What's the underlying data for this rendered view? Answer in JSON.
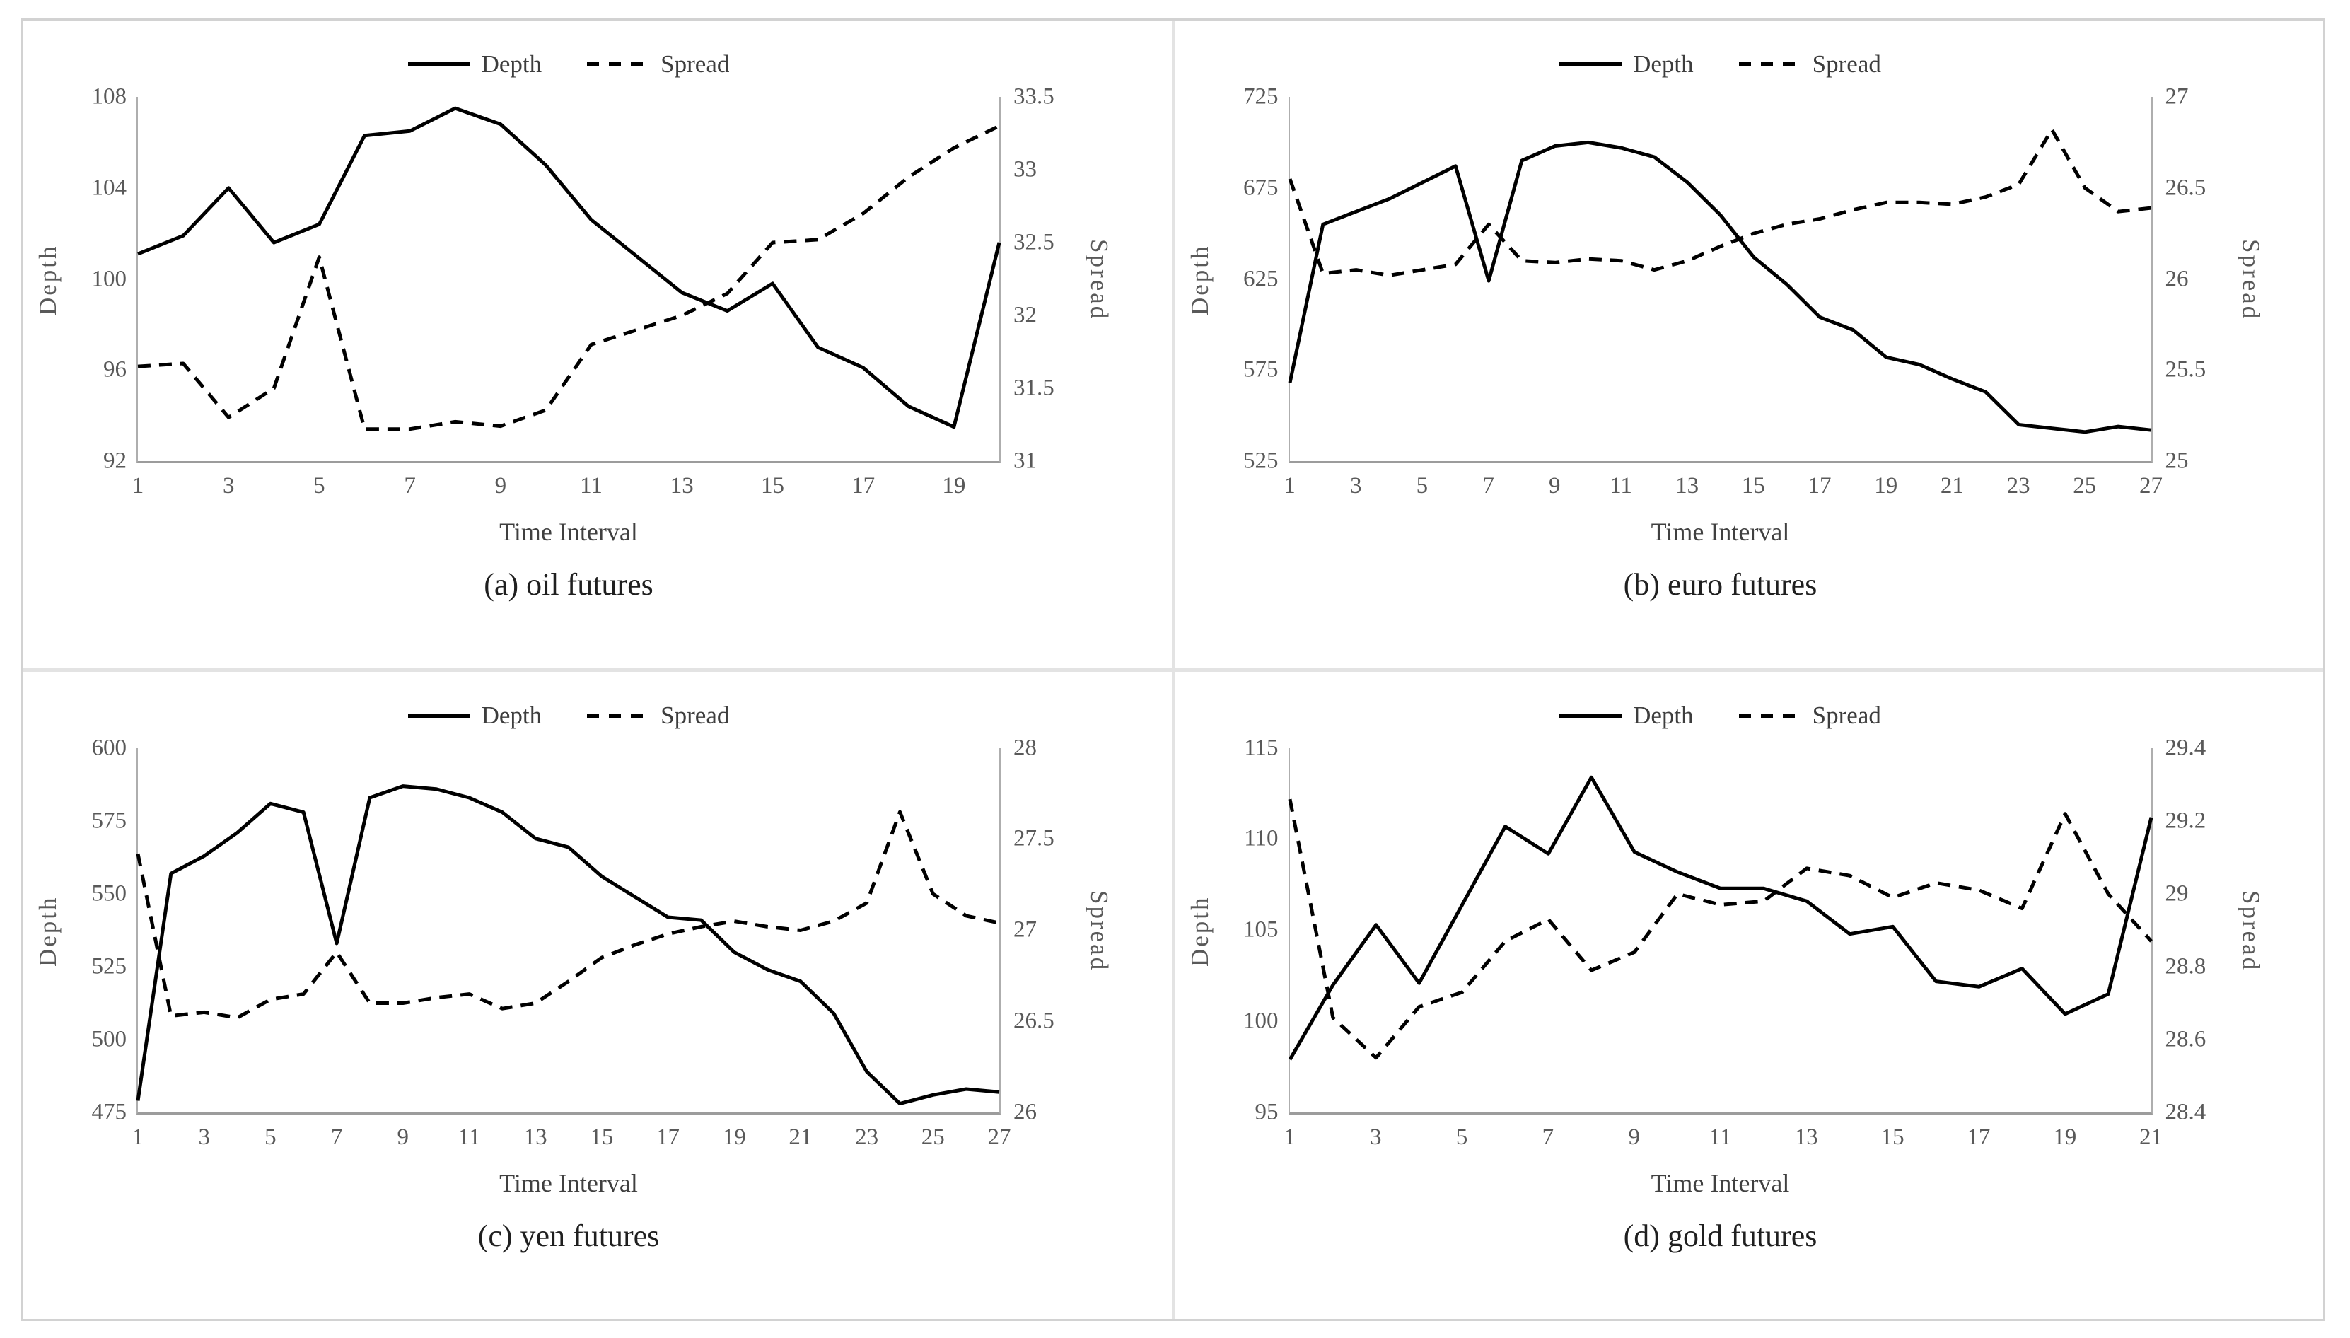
{
  "page": {
    "background": "#ffffff",
    "frame_border_color": "#d2d2d2",
    "divider_color": "#e3e3e3",
    "line_color": "#000000",
    "tick_text_color": "#595959"
  },
  "chart_data": [
    {
      "type": "line",
      "caption": "(a) oil futures",
      "xlabel": "Time Interval",
      "ylabel_left": "Depth",
      "ylabel_right": "Spread",
      "legend_position": "top",
      "grid": false,
      "xlim": [
        1,
        20
      ],
      "xticks": [
        1,
        3,
        5,
        7,
        9,
        11,
        13,
        15,
        17,
        19
      ],
      "ylim_left": [
        92,
        108
      ],
      "yticks_left": [
        92,
        96,
        100,
        104,
        108
      ],
      "ylim_right": [
        31,
        33.5
      ],
      "yticks_right": [
        31,
        31.5,
        32,
        32.5,
        33,
        33.5
      ],
      "x": [
        1,
        2,
        3,
        4,
        5,
        6,
        7,
        8,
        9,
        10,
        11,
        12,
        13,
        14,
        15,
        16,
        17,
        18,
        19,
        20
      ],
      "series": [
        {
          "name": "Depth",
          "axis": "left",
          "style": "solid",
          "values": [
            101.1,
            101.9,
            104.0,
            101.6,
            102.4,
            106.3,
            106.5,
            107.5,
            106.8,
            105.0,
            102.6,
            101.0,
            99.4,
            98.6,
            99.8,
            97.0,
            96.1,
            94.4,
            93.5,
            101.6
          ]
        },
        {
          "name": "Spread",
          "axis": "right",
          "style": "dashed",
          "values": [
            31.65,
            31.67,
            31.3,
            31.5,
            32.4,
            31.22,
            31.22,
            31.27,
            31.24,
            31.35,
            31.8,
            31.9,
            32.0,
            32.15,
            32.5,
            32.52,
            32.7,
            32.95,
            33.15,
            33.3
          ]
        }
      ]
    },
    {
      "type": "line",
      "caption": "(b) euro futures",
      "xlabel": "Time Interval",
      "ylabel_left": "Depth",
      "ylabel_right": "Spread",
      "legend_position": "top",
      "grid": false,
      "xlim": [
        1,
        27
      ],
      "xticks": [
        1,
        3,
        5,
        7,
        9,
        11,
        13,
        15,
        17,
        19,
        21,
        23,
        25,
        27
      ],
      "ylim_left": [
        525,
        725
      ],
      "yticks_left": [
        525,
        575,
        625,
        675,
        725
      ],
      "ylim_right": [
        25,
        27
      ],
      "yticks_right": [
        25,
        25.5,
        26,
        26.5,
        27
      ],
      "x": [
        1,
        2,
        3,
        4,
        5,
        6,
        7,
        8,
        9,
        10,
        11,
        12,
        13,
        14,
        15,
        16,
        17,
        18,
        19,
        20,
        21,
        22,
        23,
        24,
        25,
        26,
        27
      ],
      "series": [
        {
          "name": "Depth",
          "axis": "left",
          "style": "solid",
          "values": [
            568,
            655,
            662,
            669,
            678,
            687,
            624,
            690,
            698,
            700,
            697,
            692,
            678,
            660,
            637,
            622,
            604,
            597,
            582,
            578,
            570,
            563,
            545,
            543,
            541,
            544,
            542
          ]
        },
        {
          "name": "Spread",
          "axis": "right",
          "style": "dashed",
          "values": [
            26.55,
            26.03,
            26.05,
            26.02,
            26.05,
            26.08,
            26.3,
            26.1,
            26.09,
            26.11,
            26.1,
            26.05,
            26.1,
            26.18,
            26.25,
            26.3,
            26.33,
            26.38,
            26.42,
            26.42,
            26.41,
            26.45,
            26.52,
            26.82,
            26.5,
            26.37,
            26.39
          ]
        }
      ]
    },
    {
      "type": "line",
      "caption": "(c) yen futures",
      "xlabel": "Time Interval",
      "ylabel_left": "Depth",
      "ylabel_right": "Spread",
      "legend_position": "top",
      "grid": false,
      "xlim": [
        1,
        27
      ],
      "xticks": [
        1,
        3,
        5,
        7,
        9,
        11,
        13,
        15,
        17,
        19,
        21,
        23,
        25,
        27
      ],
      "ylim_left": [
        475,
        600
      ],
      "yticks_left": [
        475,
        500,
        525,
        550,
        575,
        600
      ],
      "ylim_right": [
        26,
        28
      ],
      "yticks_right": [
        26,
        26.5,
        27,
        27.5,
        28
      ],
      "x": [
        1,
        2,
        3,
        4,
        5,
        6,
        7,
        8,
        9,
        10,
        11,
        12,
        13,
        14,
        15,
        16,
        17,
        18,
        19,
        20,
        21,
        22,
        23,
        24,
        25,
        26,
        27
      ],
      "series": [
        {
          "name": "Depth",
          "axis": "left",
          "style": "solid",
          "values": [
            479,
            557,
            563,
            571,
            581,
            578,
            533,
            583,
            587,
            586,
            583,
            578,
            569,
            566,
            556,
            549,
            542,
            541,
            530,
            524,
            520,
            509,
            489,
            478,
            481,
            483,
            482
          ]
        },
        {
          "name": "Spread",
          "axis": "right",
          "style": "dashed",
          "values": [
            27.42,
            26.53,
            26.55,
            26.52,
            26.62,
            26.65,
            26.88,
            26.6,
            26.6,
            26.63,
            26.65,
            26.57,
            26.6,
            26.72,
            26.85,
            26.92,
            26.98,
            27.02,
            27.05,
            27.02,
            27.0,
            27.05,
            27.15,
            27.65,
            27.2,
            27.08,
            27.04
          ]
        }
      ]
    },
    {
      "type": "line",
      "caption": "(d) gold futures",
      "xlabel": "Time Interval",
      "ylabel_left": "Depth",
      "ylabel_right": "Spread",
      "legend_position": "top",
      "grid": false,
      "xlim": [
        1,
        21
      ],
      "xticks": [
        1,
        3,
        5,
        7,
        9,
        11,
        13,
        15,
        17,
        19,
        21
      ],
      "ylim_left": [
        95,
        115
      ],
      "yticks_left": [
        95,
        100,
        105,
        110,
        115
      ],
      "ylim_right": [
        28.4,
        29.4
      ],
      "yticks_right": [
        28.4,
        28.6,
        28.8,
        29,
        29.2,
        29.4
      ],
      "x": [
        1,
        2,
        3,
        4,
        5,
        6,
        7,
        8,
        9,
        10,
        11,
        12,
        13,
        14,
        15,
        16,
        17,
        18,
        19,
        20,
        21
      ],
      "series": [
        {
          "name": "Depth",
          "axis": "left",
          "style": "solid",
          "values": [
            97.9,
            102.0,
            105.3,
            102.1,
            106.4,
            110.7,
            109.2,
            113.4,
            109.3,
            108.2,
            107.3,
            107.3,
            106.6,
            104.8,
            105.2,
            102.2,
            101.9,
            102.9,
            100.4,
            101.5,
            111.2
          ]
        },
        {
          "name": "Spread",
          "axis": "right",
          "style": "dashed",
          "values": [
            29.26,
            28.66,
            28.55,
            28.69,
            28.73,
            28.87,
            28.93,
            28.79,
            28.84,
            29.0,
            28.97,
            28.98,
            29.07,
            29.05,
            28.99,
            29.03,
            29.01,
            28.96,
            29.22,
            29.0,
            28.87
          ]
        }
      ]
    }
  ]
}
